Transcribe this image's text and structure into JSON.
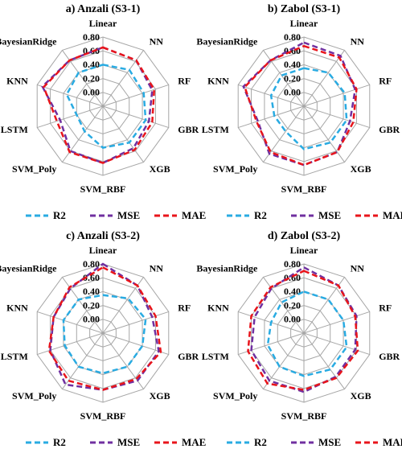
{
  "chart_data": [
    {
      "type": "radar",
      "title": "a) Anzali  (S3-1)",
      "categories": [
        "Linear",
        "NN",
        "RF",
        "GBR",
        "XGB",
        "SVM_RBF",
        "SVM_Poly",
        "LSTM",
        "KNN",
        "BayesianRidge"
      ],
      "rlim": [
        -0.2,
        0.8
      ],
      "yticks": [
        {
          "value": 0,
          "label": "0.00"
        },
        {
          "value": 0.2,
          "label": "0.20"
        },
        {
          "value": 0.4,
          "label": "0.40"
        },
        {
          "value": 0.6,
          "label": "0.60"
        },
        {
          "value": 0.8,
          "label": "0.80"
        }
      ],
      "series": [
        {
          "name": "R2",
          "color": "#29abe2",
          "values": [
            0.4,
            0.45,
            0.42,
            0.45,
            0.45,
            0.4,
            0.25,
            0.2,
            0.35,
            0.4
          ]
        },
        {
          "name": "MSE",
          "color": "#7030a0",
          "values": [
            0.65,
            0.62,
            0.55,
            0.5,
            0.55,
            0.62,
            0.6,
            0.45,
            0.72,
            0.62
          ]
        },
        {
          "name": "MAE",
          "color": "#e8141b",
          "values": [
            0.65,
            0.62,
            0.58,
            0.55,
            0.58,
            0.62,
            0.62,
            0.5,
            0.7,
            0.62
          ]
        }
      ]
    },
    {
      "type": "radar",
      "title": "b) Zabol  (S3-1)",
      "categories": [
        "Linear",
        "NN",
        "RF",
        "GBR",
        "XGB",
        "SVM_RBF",
        "SVM_Poly",
        "LSTM",
        "KNN",
        "BayesianRidge"
      ],
      "rlim": [
        -0.2,
        0.8
      ],
      "yticks": [
        {
          "value": 0,
          "label": "0.00"
        },
        {
          "value": 0.2,
          "label": "0.20"
        },
        {
          "value": 0.4,
          "label": "0.40"
        },
        {
          "value": 0.6,
          "label": "0.60"
        },
        {
          "value": 0.8,
          "label": "0.80"
        }
      ],
      "series": [
        {
          "name": "R2",
          "color": "#29abe2",
          "values": [
            0.35,
            0.4,
            0.42,
            0.45,
            0.45,
            0.42,
            0.25,
            0.25,
            0.3,
            0.35
          ]
        },
        {
          "name": "MSE",
          "color": "#7030a0",
          "values": [
            0.72,
            0.7,
            0.58,
            0.5,
            0.62,
            0.65,
            0.65,
            0.5,
            0.72,
            0.62
          ]
        },
        {
          "name": "MAE",
          "color": "#e8141b",
          "values": [
            0.67,
            0.67,
            0.6,
            0.55,
            0.62,
            0.65,
            0.62,
            0.52,
            0.7,
            0.62
          ]
        }
      ]
    },
    {
      "type": "radar",
      "title": "c) Anzali  (S3-2)",
      "categories": [
        "Linear",
        "NN",
        "RF",
        "GBR",
        "XGB",
        "SVM_RBF",
        "SVM_Poly",
        "LSTM",
        "KNN",
        "BayesianRidge"
      ],
      "rlim": [
        -0.2,
        0.8
      ],
      "yticks": [
        {
          "value": 0,
          "label": "0.00"
        },
        {
          "value": 0.2,
          "label": "0.20"
        },
        {
          "value": 0.4,
          "label": "0.40"
        },
        {
          "value": 0.6,
          "label": "0.60"
        },
        {
          "value": 0.8,
          "label": "0.80"
        }
      ],
      "series": [
        {
          "name": "R2",
          "color": "#29abe2",
          "values": [
            0.35,
            0.42,
            0.45,
            0.4,
            0.4,
            0.38,
            0.4,
            0.38,
            0.4,
            0.4
          ]
        },
        {
          "name": "MSE",
          "color": "#7030a0",
          "values": [
            0.8,
            0.65,
            0.55,
            0.65,
            0.65,
            0.62,
            0.72,
            0.6,
            0.55,
            0.6
          ]
        },
        {
          "name": "MAE",
          "color": "#e8141b",
          "values": [
            0.75,
            0.65,
            0.6,
            0.68,
            0.62,
            0.62,
            0.65,
            0.62,
            0.55,
            0.62
          ]
        }
      ]
    },
    {
      "type": "radar",
      "title": "d) Zabol  (S3-2)",
      "categories": [
        "Linear",
        "NN",
        "RF",
        "GBR",
        "XGB",
        "SVM_RBF",
        "SVM_Poly",
        "LSTM",
        "KNN",
        "BayesianRidge"
      ],
      "rlim": [
        -0.2,
        0.8
      ],
      "yticks": [
        {
          "value": 0,
          "label": "0.00"
        },
        {
          "value": 0.2,
          "label": "0.20"
        },
        {
          "value": 0.4,
          "label": "0.40"
        },
        {
          "value": 0.6,
          "label": "0.60"
        },
        {
          "value": 0.8,
          "label": "0.80"
        }
      ],
      "series": [
        {
          "name": "R2",
          "color": "#29abe2",
          "values": [
            0.4,
            0.4,
            0.4,
            0.45,
            0.45,
            0.42,
            0.4,
            0.35,
            0.3,
            0.35
          ]
        },
        {
          "name": "MSE",
          "color": "#7030a0",
          "values": [
            0.75,
            0.65,
            0.6,
            0.58,
            0.58,
            0.65,
            0.65,
            0.6,
            0.55,
            0.6
          ]
        },
        {
          "name": "MAE",
          "color": "#e8141b",
          "values": [
            0.7,
            0.65,
            0.58,
            0.62,
            0.6,
            0.62,
            0.7,
            0.65,
            0.6,
            0.62
          ]
        }
      ]
    }
  ]
}
